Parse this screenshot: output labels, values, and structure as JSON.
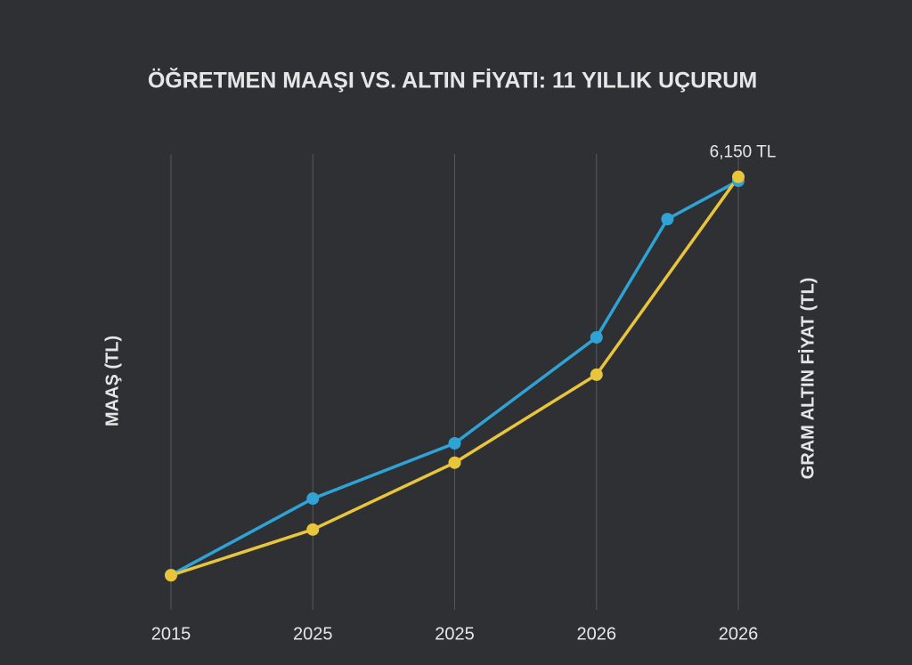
{
  "chart_data": {
    "type": "line",
    "title": "ÖĞRETMEN MAAŞI VS. ALTIN FİYATI: 11 YILLIK UÇURUM",
    "y_label": "MAAŞ (TL)",
    "y2_label": "GRAM ALTIN FİYAT (TL)",
    "xlim": [
      0,
      4
    ],
    "xticks": [
      {
        "value": 0,
        "label": "2015"
      },
      {
        "value": 1,
        "label": "2025"
      },
      {
        "value": 2,
        "label": "2025"
      },
      {
        "value": 3,
        "label": "2026"
      },
      {
        "value": 4,
        "label": "2026"
      }
    ],
    "ylim": [
      0,
      130000
    ],
    "y2lim": [
      0,
      6500
    ],
    "grid": true,
    "series": [
      {
        "color": "#2fa3d6",
        "x": [
          0,
          1,
          2,
          3,
          3.5,
          4
        ],
        "values": [
          9900,
          31600,
          47300,
          77400,
          111000,
          121900
        ]
      },
      {
        "color": "#e9c53b",
        "axis": "y2",
        "x": [
          0,
          1,
          2,
          3,
          4
        ],
        "values": [
          490,
          1140,
          2090,
          3340,
          6150
        ],
        "value_labels": [
          null,
          null,
          null,
          null,
          "6,150 TL"
        ]
      }
    ]
  }
}
